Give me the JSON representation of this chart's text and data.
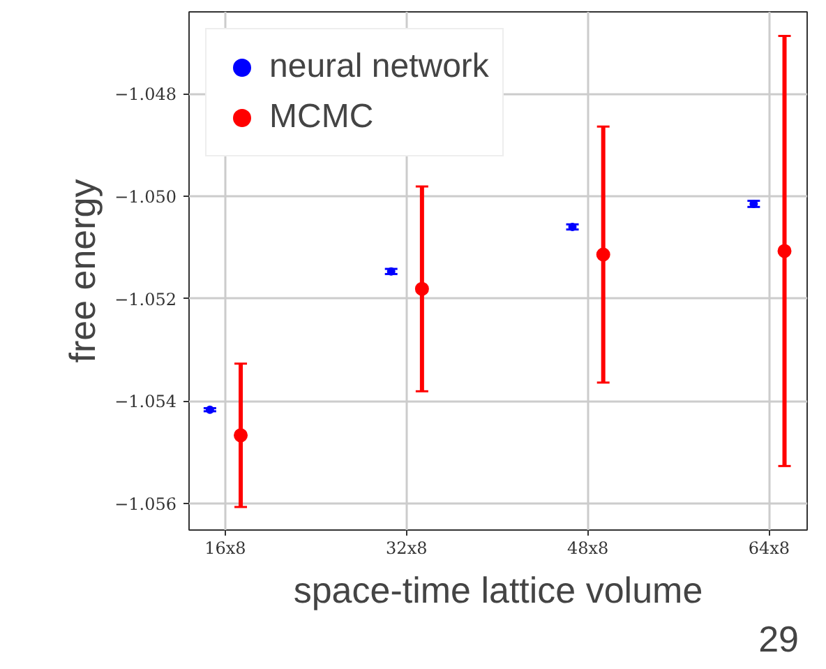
{
  "chart_data": {
    "type": "scatter",
    "xlabel": "space-time lattice volume",
    "ylabel": "free energy",
    "categories": [
      "16x8",
      "32x8",
      "48x8",
      "64x8"
    ],
    "ylim": [
      -1.05652,
      -1.0464
    ],
    "yticks": [
      {
        "value": -1.056,
        "label": "−1.056"
      },
      {
        "value": -1.054,
        "label": "−1.054"
      },
      {
        "value": -1.052,
        "label": "−1.052"
      },
      {
        "value": -1.05,
        "label": "−1.050"
      },
      {
        "value": -1.048,
        "label": "−1.048"
      }
    ],
    "series": [
      {
        "name": "neural network",
        "color": "#0000ff",
        "values": [
          -1.05417,
          -1.05147,
          -1.0506,
          -1.05015
        ],
        "errors": [
          3e-05,
          5e-05,
          5e-05,
          6e-05
        ]
      },
      {
        "name": "MCMC",
        "color": "#ff0000",
        "values": [
          -1.05467,
          -1.05181,
          -1.05114,
          -1.05107
        ],
        "errors": [
          0.0014,
          0.002,
          0.0025,
          0.0042
        ]
      }
    ],
    "annotations": [
      "29"
    ],
    "grid": true,
    "legend": "top left",
    "marker": "circle"
  }
}
